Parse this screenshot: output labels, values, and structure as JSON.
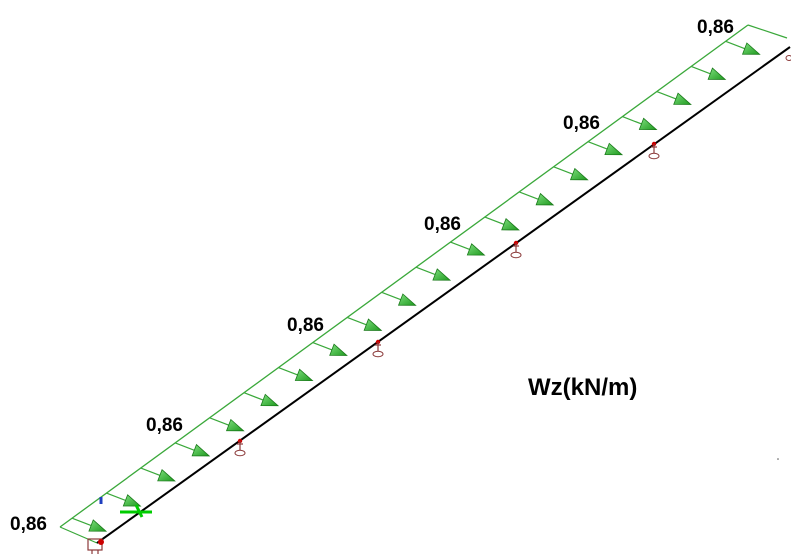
{
  "diagram": {
    "load_labels": [
      "0,86",
      "0,86",
      "0,86",
      "0,86",
      "0,86",
      "0,86"
    ],
    "caption": "Wz(kN/m)",
    "colors": {
      "beam": "#000000",
      "load_outline": "#2e9e2e",
      "arrow_fill": "#3cc83c",
      "arrow_dark": "#1a7a1a",
      "support": "#8b3a3a",
      "support_node": "#cc0000",
      "axis_marker": "#1f3fbf",
      "axis_green": "#00cc00"
    },
    "icons": {
      "support": "pinned-support-icon",
      "axis": "local-axis-icon"
    }
  }
}
